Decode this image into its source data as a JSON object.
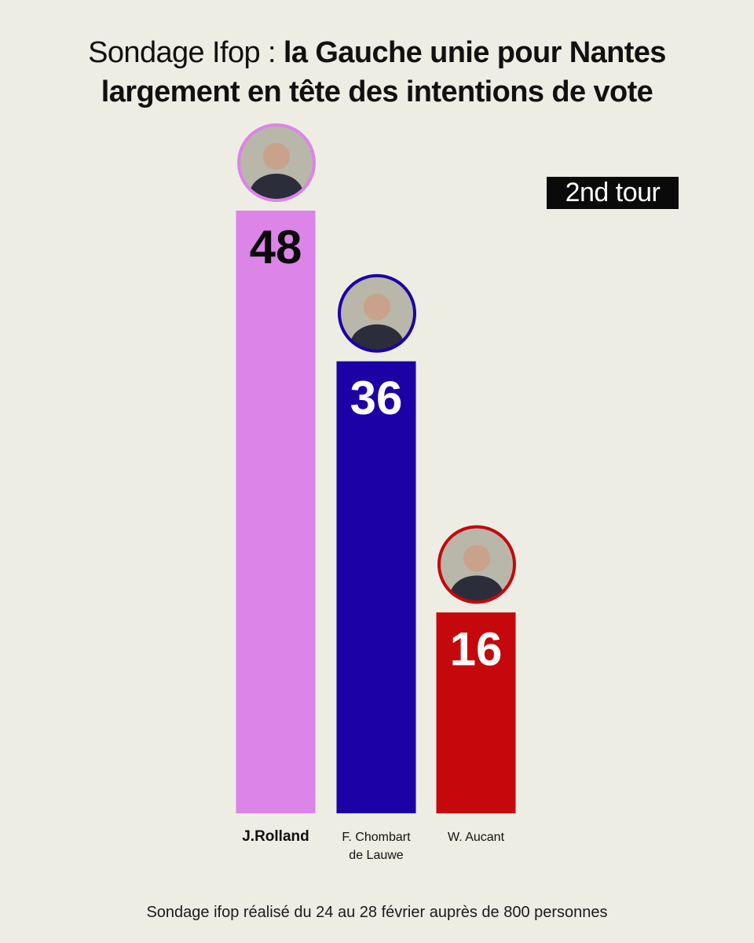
{
  "header": {
    "title_light": "Sondage Ifop : ",
    "title_bold_line1": "la Gauche unie pour Nantes",
    "title_bold_line2": "largement en tête des intentions de vote"
  },
  "round_badge": "2nd tour",
  "footer": "Sondage ifop réalisé du 24 au 28 février auprès de 800 personnes",
  "chart_data": {
    "type": "bar",
    "title": "",
    "xlabel": "",
    "ylabel": "",
    "grid": false,
    "categories": [
      "J.Rolland",
      "F. Chombart de Lauwe",
      "W. Aucant"
    ],
    "category_lines": [
      [
        "J.Rolland"
      ],
      [
        "F. Chombart",
        "de Lauwe"
      ],
      [
        "W. Aucant"
      ]
    ],
    "values": [
      48,
      36,
      16
    ],
    "value_labels": [
      "48",
      "36",
      "16"
    ],
    "colors": [
      "#dc84e8",
      "#1c01a6",
      "#c4080c"
    ],
    "label_colors": [
      "#0a0a0a",
      "#ffffff",
      "#ffffff"
    ],
    "avatar_icons": [
      "avatar-portrait-icon",
      "avatar-portrait-icon",
      "avatar-portrait-icon"
    ],
    "ylim": [
      0,
      48
    ]
  }
}
